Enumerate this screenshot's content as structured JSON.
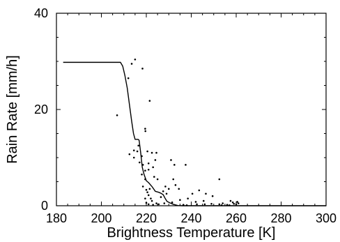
{
  "chart_data": {
    "type": "scatter",
    "title": "",
    "xlabel": "Brightness Temperature [K]",
    "ylabel": "Rain Rate [mm/h]",
    "xlim": [
      180,
      300
    ],
    "ylim": [
      0,
      40
    ],
    "x_ticks": [
      180,
      200,
      220,
      240,
      260,
      280,
      300
    ],
    "y_ticks": [
      0,
      20,
      40
    ],
    "x_tick_labels": [
      "180",
      "200",
      "220",
      "240",
      "260",
      "280",
      "300"
    ],
    "y_tick_labels": [
      "0",
      "20",
      "40"
    ],
    "grid": false,
    "legend": "none",
    "colors": {
      "line": "#000000",
      "points": "#000000",
      "frame": "#000000"
    },
    "series": [
      {
        "type": "line",
        "points": [
          [
            183,
            29.8
          ],
          [
            208.5,
            29.8
          ],
          [
            209.5,
            29.0
          ],
          [
            210.5,
            27.0
          ],
          [
            211.5,
            24.5
          ],
          [
            212.5,
            21.0
          ],
          [
            213.5,
            17.5
          ],
          [
            214.3,
            15.0
          ],
          [
            215.0,
            13.8
          ],
          [
            216.3,
            13.8
          ],
          [
            216.8,
            13.6
          ],
          [
            217.5,
            11.0
          ],
          [
            218.2,
            8.0
          ],
          [
            219.0,
            6.5
          ],
          [
            220.0,
            5.2
          ],
          [
            221.0,
            4.8
          ],
          [
            222.5,
            4.0
          ],
          [
            224.0,
            3.0
          ],
          [
            225.5,
            2.8
          ],
          [
            226.5,
            2.6
          ],
          [
            227.5,
            2.3
          ],
          [
            228.3,
            1.6
          ],
          [
            229.2,
            0.9
          ],
          [
            230.5,
            0.6
          ],
          [
            232.0,
            0.3
          ],
          [
            234.0,
            0.05
          ],
          [
            236.0,
            0.0
          ],
          [
            300.0,
            0.0
          ]
        ]
      },
      {
        "type": "scatter",
        "points": [
          [
            207.0,
            18.8
          ],
          [
            212.0,
            26.5
          ],
          [
            213.5,
            29.5
          ],
          [
            215.0,
            30.4
          ],
          [
            218.3,
            28.5
          ],
          [
            221.5,
            21.8
          ],
          [
            219.5,
            16.0
          ],
          [
            219.6,
            15.5
          ],
          [
            212.5,
            10.7
          ],
          [
            214.5,
            10.0
          ],
          [
            214.5,
            11.5
          ],
          [
            216.0,
            11.3
          ],
          [
            216.5,
            12.5
          ],
          [
            217.0,
            9.0
          ],
          [
            218.0,
            10.3
          ],
          [
            218.5,
            8.5
          ],
          [
            218.0,
            6.5
          ],
          [
            219.5,
            7.3
          ],
          [
            219.5,
            5.5
          ],
          [
            220.5,
            11.3
          ],
          [
            221.0,
            8.8
          ],
          [
            221.0,
            7.5
          ],
          [
            222.5,
            11.0
          ],
          [
            223.0,
            8.0
          ],
          [
            223.5,
            6.0
          ],
          [
            224.0,
            9.5
          ],
          [
            224.5,
            11.0
          ],
          [
            225.0,
            5.5
          ],
          [
            218.5,
            4.0
          ],
          [
            220.0,
            3.3
          ],
          [
            220.5,
            2.8
          ],
          [
            221.0,
            2.2
          ],
          [
            221.5,
            3.5
          ],
          [
            222.0,
            1.5
          ],
          [
            222.5,
            1.0
          ],
          [
            219.5,
            1.5
          ],
          [
            220.0,
            0.6
          ],
          [
            221.0,
            0.3
          ],
          [
            223.0,
            0.2
          ],
          [
            224.5,
            0.5
          ],
          [
            225.5,
            0.3
          ],
          [
            226.5,
            1.8
          ],
          [
            227.5,
            3.0
          ],
          [
            228.5,
            4.0
          ],
          [
            229.0,
            2.5
          ],
          [
            230.0,
            3.5
          ],
          [
            231.0,
            9.5
          ],
          [
            232.0,
            5.5
          ],
          [
            232.5,
            8.5
          ],
          [
            233.0,
            4.3
          ],
          [
            234.5,
            3.5
          ],
          [
            235.0,
            1.2
          ],
          [
            237.5,
            8.5
          ],
          [
            238.5,
            1.5
          ],
          [
            240.5,
            2.5
          ],
          [
            242.0,
            0.8
          ],
          [
            243.5,
            3.2
          ],
          [
            245.5,
            1.0
          ],
          [
            246.5,
            2.5
          ],
          [
            249.5,
            2.0
          ],
          [
            252.5,
            5.5
          ],
          [
            228.0,
            0.5
          ],
          [
            231.5,
            0.7
          ],
          [
            236.5,
            0.2
          ],
          [
            242.5,
            0.3
          ],
          [
            246.0,
            0.3
          ],
          [
            249.0,
            0.4
          ],
          [
            252.5,
            0.3
          ],
          [
            254.0,
            0.5
          ],
          [
            256.0,
            0.2
          ],
          [
            257.5,
            1.0
          ],
          [
            258.5,
            0.7
          ],
          [
            259.0,
            0.4
          ],
          [
            260.0,
            0.3
          ],
          [
            260.5,
            0.8
          ],
          [
            261.0,
            0.5
          ],
          [
            257.0,
            0.1
          ],
          [
            253.5,
            0.1
          ],
          [
            238.0,
            0.1
          ]
        ]
      }
    ]
  }
}
